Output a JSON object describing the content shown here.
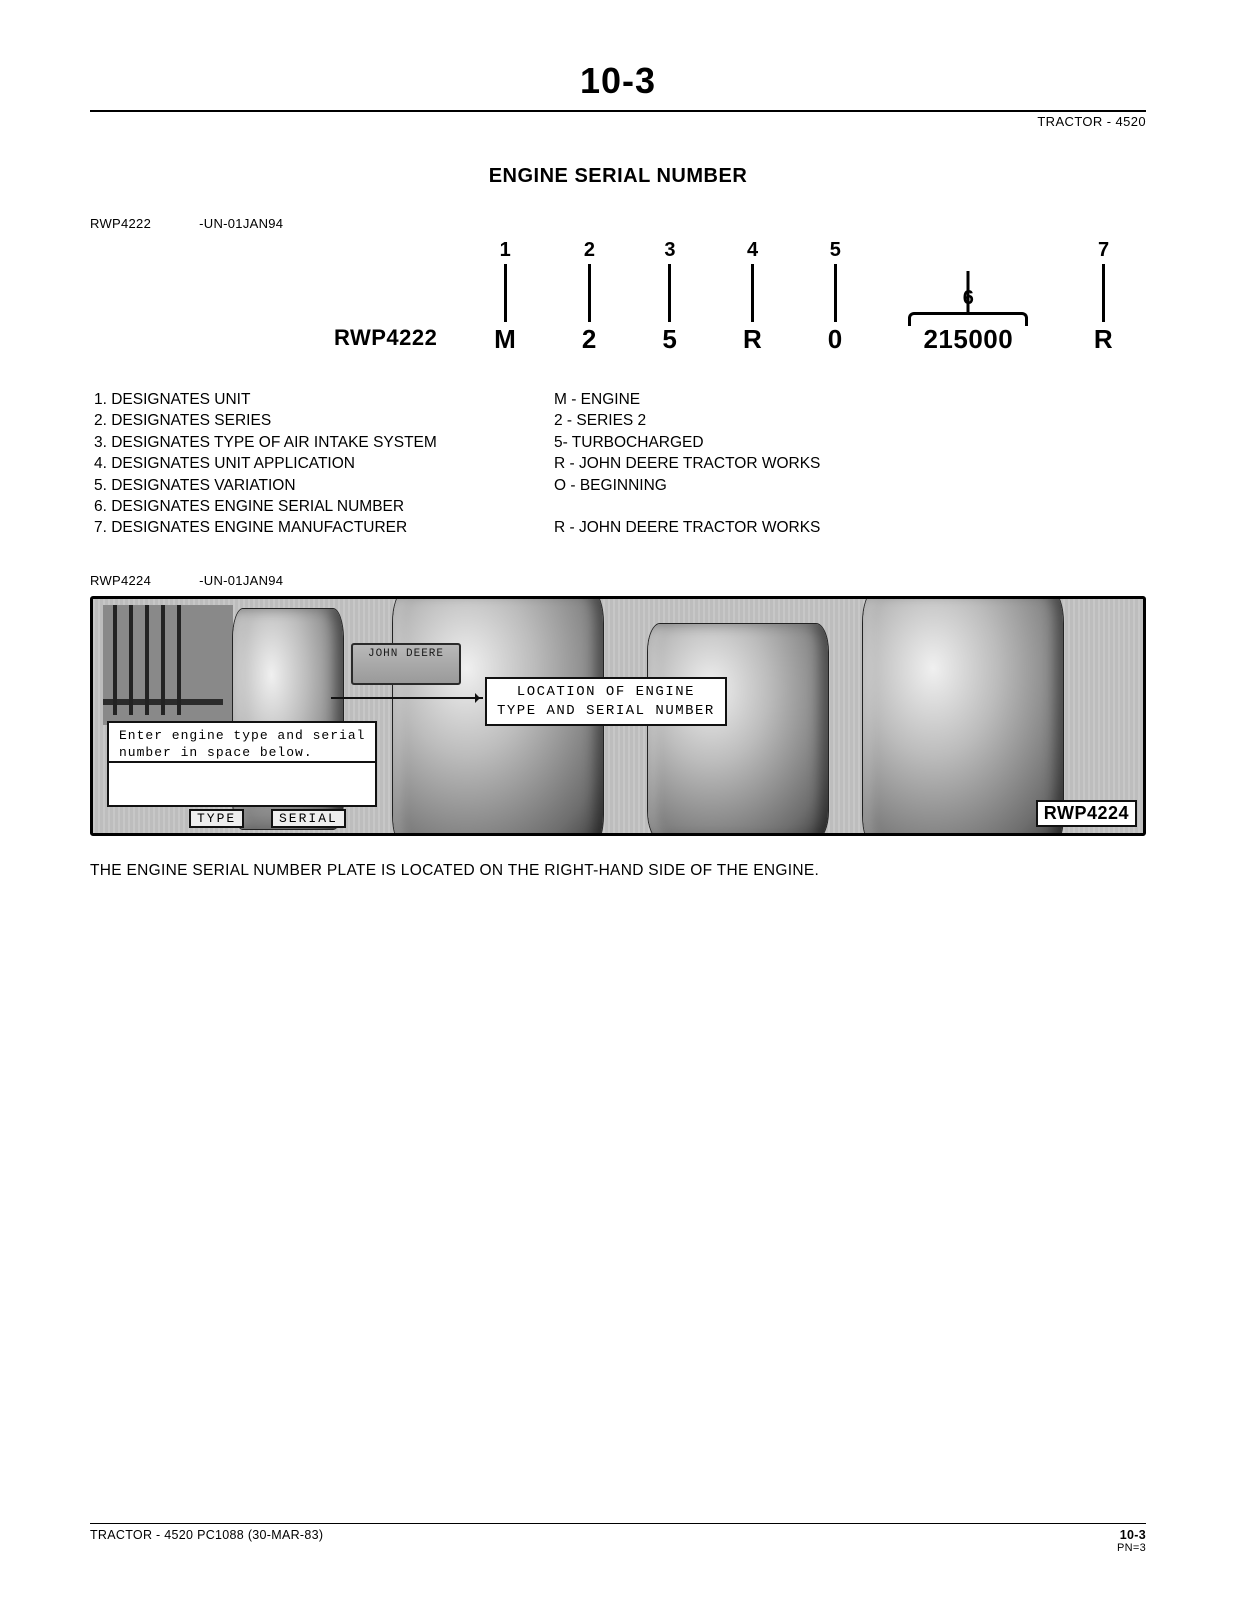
{
  "page_number_top": "10-3",
  "header_right": "TRACTOR  -  4520",
  "section_title": "ENGINE SERIAL NUMBER",
  "fig1": {
    "id": "RWP4222",
    "rev": "-UN-01JAN94",
    "label": "RWP4222"
  },
  "serial": {
    "cols": [
      {
        "num": "1",
        "val": "M"
      },
      {
        "num": "2",
        "val": "2"
      },
      {
        "num": "3",
        "val": "5"
      },
      {
        "num": "4",
        "val": "R"
      },
      {
        "num": "5",
        "val": "0"
      },
      {
        "num": "6",
        "val": "215000",
        "wide": true
      },
      {
        "num": "7",
        "val": "R"
      }
    ]
  },
  "defs_left": " 1.  DESIGNATES UNIT\n 2.  DESIGNATES SERIES\n 3.  DESIGNATES TYPE OF AIR INTAKE SYSTEM\n 4.  DESIGNATES UNIT APPLICATION\n 5.  DESIGNATES VARIATION\n6.  DESIGNATES ENGINE SERIAL NUMBER\n 7.  DESIGNATES ENGINE MANUFACTURER",
  "defs_right": "M - ENGINE\n2 - SERIES 2\n5- TURBOCHARGED\nR - JOHN DEERE TRACTOR WORKS\nO - BEGINNING\n\nR - JOHN DEERE TRACTOR WORKS",
  "fig2": {
    "id": "RWP4224",
    "rev": "-UN-01JAN94"
  },
  "photo": {
    "plate_text": "JOHN DEERE",
    "enter_box": "Enter engine type and serial\nnumber in space below.",
    "loc_box": "  LOCATION OF ENGINE\nTYPE AND SERIAL NUMBER",
    "type_label": "TYPE",
    "serial_label": "SERIAL",
    "corner_id": "RWP4224"
  },
  "caption": "THE ENGINE SERIAL NUMBER PLATE IS LOCATED ON THE RIGHT-HAND SIDE OF THE ENGINE.",
  "footer": {
    "left": "TRACTOR - 4520     PC1088     (30-MAR-83)",
    "right_main": "10-3",
    "right_sub": "PN=3"
  },
  "colors": {
    "text": "#000000",
    "bg": "#ffffff",
    "rule": "#000000"
  }
}
